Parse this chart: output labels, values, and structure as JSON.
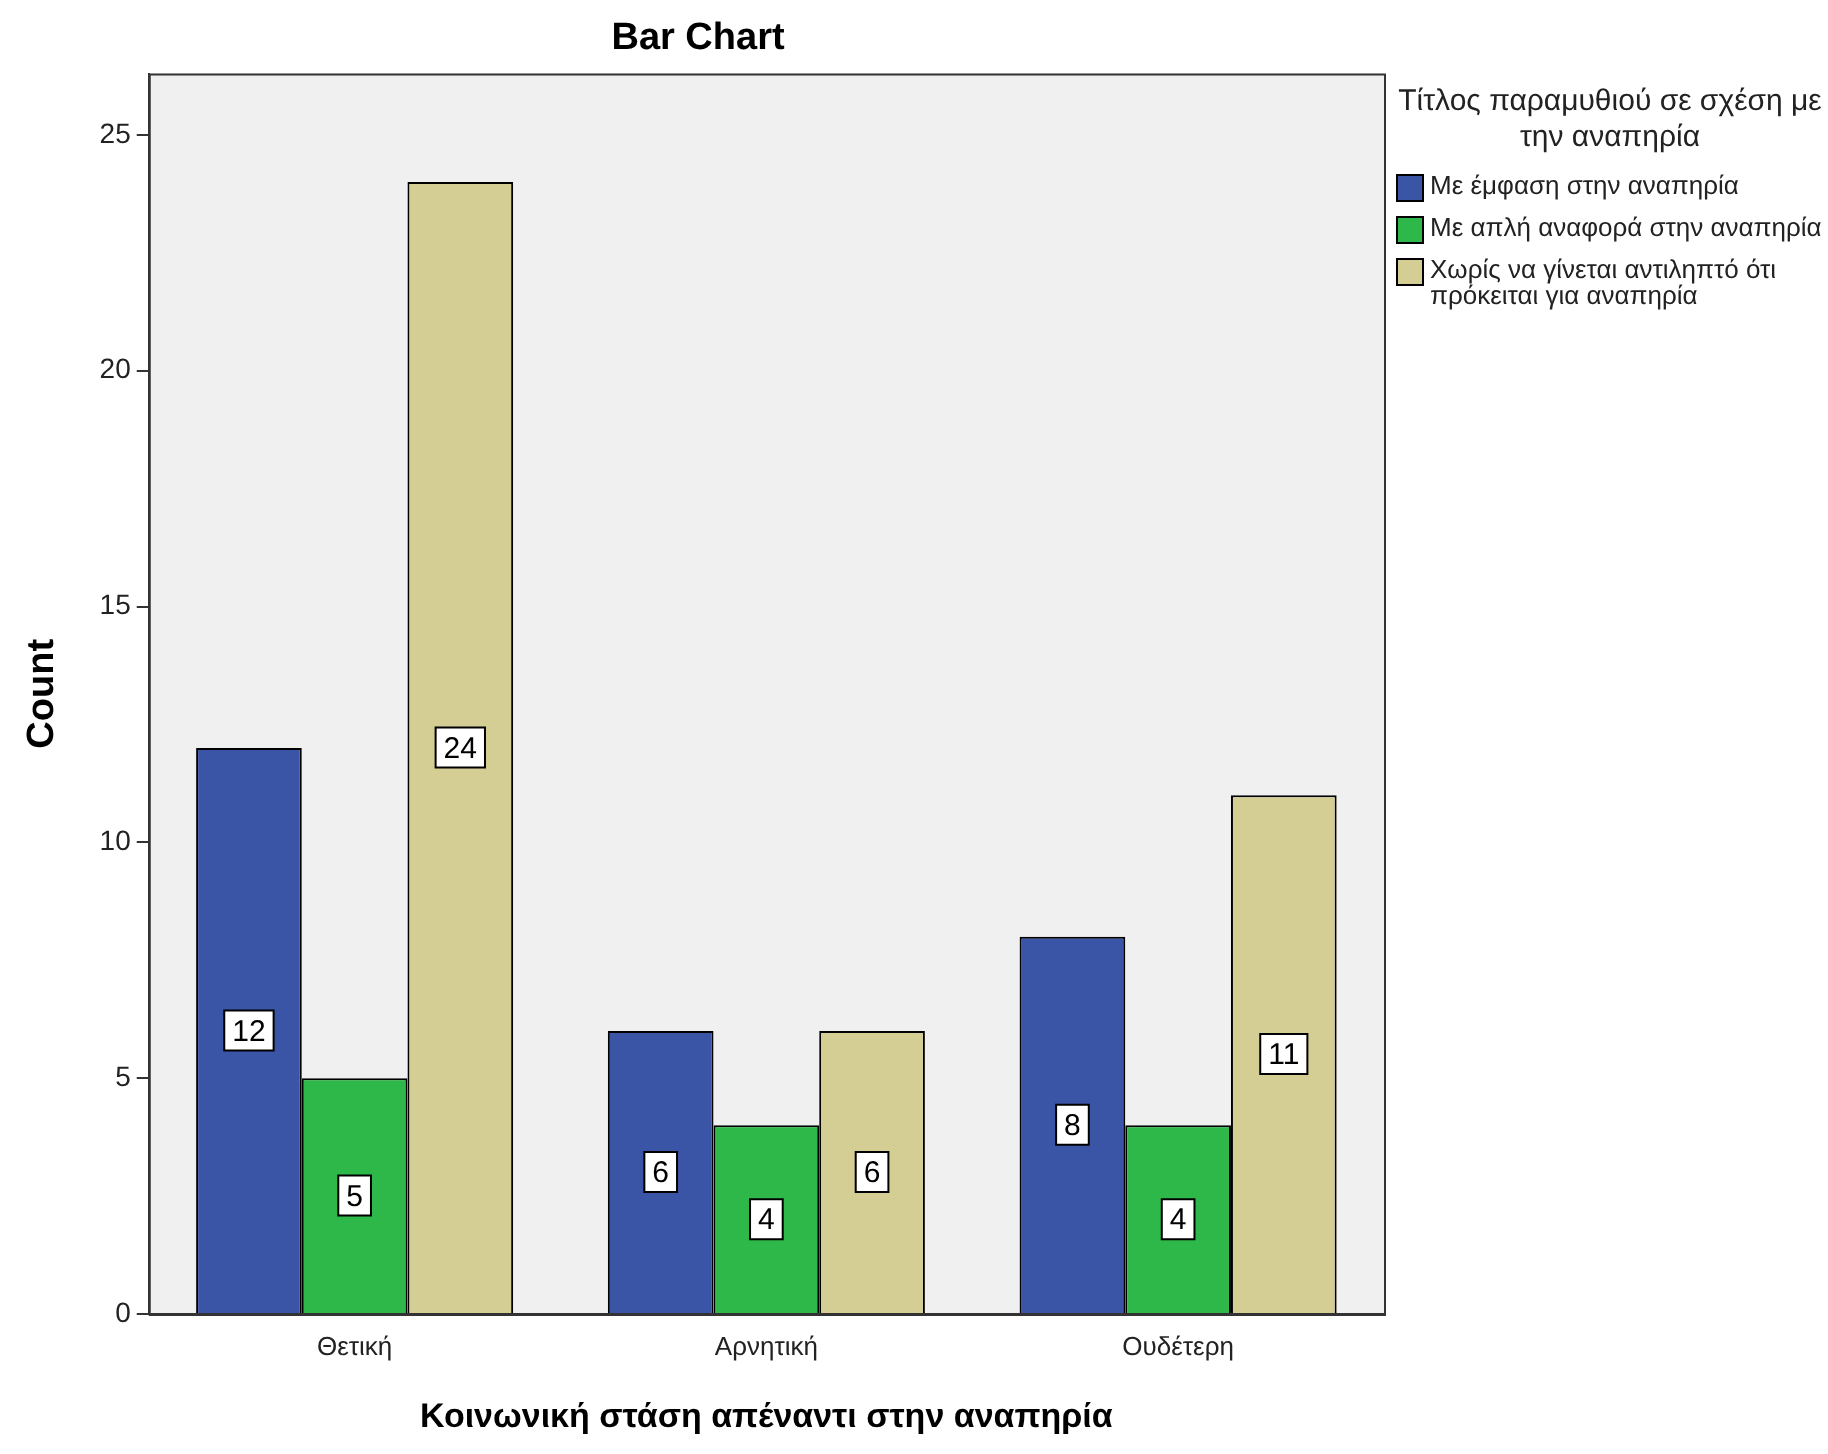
{
  "chart_data": {
    "type": "bar",
    "title": "Bar Chart",
    "xlabel": "Κοινωνική στάση απέναντι στην αναπηρία",
    "ylabel": "Count",
    "legend_title": "Τίτλος παραμυθιού σε σχέση με την αναπηρία",
    "categories": [
      "Θετική",
      "Αρνητική",
      "Ουδέτερη"
    ],
    "series": [
      {
        "name": "Με έμφαση στην αναπηρία",
        "color": "#3a55a6",
        "values": [
          12,
          6,
          8
        ]
      },
      {
        "name": "Με απλή αναφορά στην αναπηρία",
        "color": "#2eb84a",
        "values": [
          5,
          4,
          4
        ]
      },
      {
        "name": "Χωρίς να γίνεται αντιληπτό ότι πρόκειται για αναπηρία",
        "color": "#d5ce94",
        "values": [
          24,
          6,
          11
        ]
      }
    ],
    "ylim": [
      0,
      26.3
    ],
    "yticks": [
      0,
      5,
      10,
      15,
      20,
      25
    ],
    "grid": false,
    "legend": "top right",
    "data_labels": true
  }
}
